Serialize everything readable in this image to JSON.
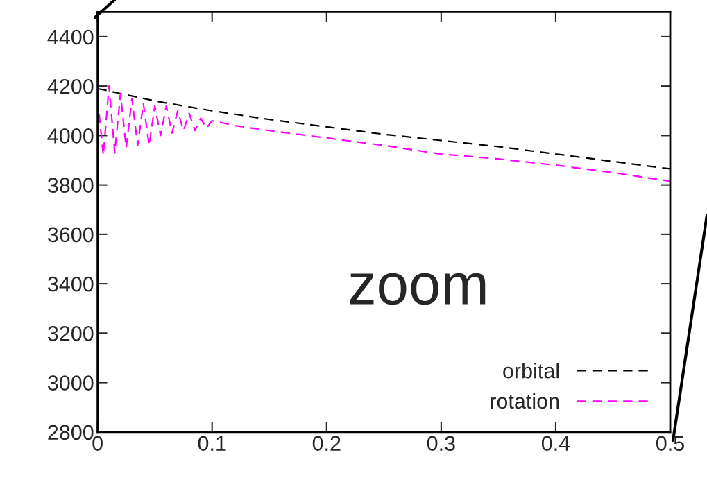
{
  "chart_data": {
    "type": "line",
    "xlim": [
      0,
      0.5
    ],
    "ylim": [
      2800,
      4500
    ],
    "xticks": [
      0,
      0.1,
      0.2,
      0.3,
      0.4,
      0.5
    ],
    "yticks": [
      2800,
      3000,
      3200,
      3400,
      3600,
      3800,
      4000,
      4200,
      4400
    ],
    "series": [
      {
        "name": "orbital",
        "color": "#000000",
        "line_style": "dashed",
        "x": [
          0,
          0.05,
          0.1,
          0.15,
          0.2,
          0.25,
          0.3,
          0.35,
          0.4,
          0.45,
          0.5
        ],
        "values": [
          4190,
          4140,
          4100,
          4065,
          4035,
          4005,
          3980,
          3955,
          3925,
          3895,
          3865
        ]
      },
      {
        "name": "rotation",
        "color": "#ff00ff",
        "line_style": "dashed",
        "x": [
          0,
          0.005,
          0.01,
          0.015,
          0.02,
          0.025,
          0.03,
          0.035,
          0.04,
          0.045,
          0.05,
          0.055,
          0.06,
          0.065,
          0.07,
          0.075,
          0.08,
          0.085,
          0.09,
          0.095,
          0.1,
          0.12,
          0.15,
          0.2,
          0.25,
          0.3,
          0.35,
          0.4,
          0.45,
          0.5
        ],
        "values": [
          4150,
          3920,
          4200,
          3930,
          4170,
          3950,
          4150,
          3960,
          4130,
          3960,
          4120,
          4000,
          4120,
          4010,
          4100,
          4020,
          4090,
          4020,
          4070,
          4030,
          4060,
          4040,
          4020,
          3990,
          3960,
          3925,
          3905,
          3880,
          3850,
          3815
        ]
      }
    ],
    "legend": "bottom right",
    "annotations": [
      "zoom"
    ]
  }
}
